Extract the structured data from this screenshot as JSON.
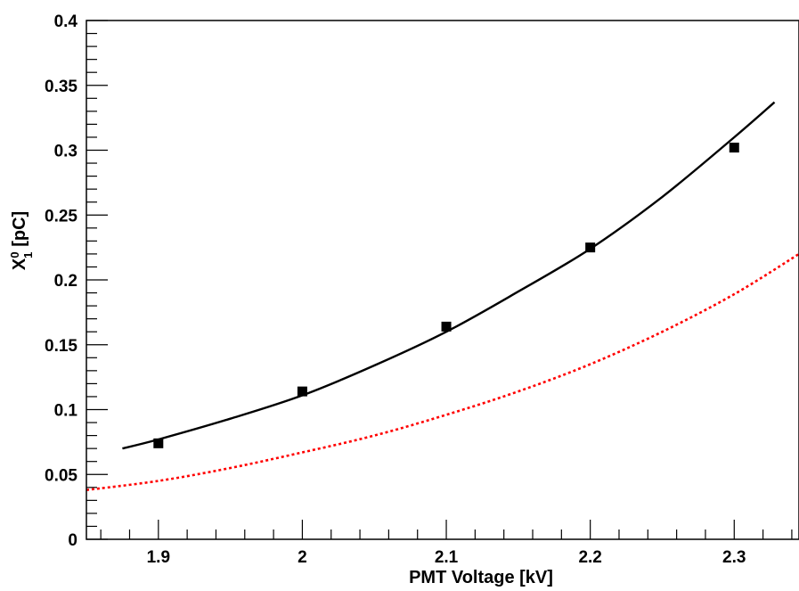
{
  "chart_data": {
    "type": "scatter",
    "title": "",
    "xlabel": "PMT Voltage [kV]",
    "ylabel": {
      "base": "X",
      "sub": "1",
      "sup": "0",
      "unit": " [pC]"
    },
    "xlim": [
      1.85,
      2.345
    ],
    "ylim": [
      0,
      0.4
    ],
    "x_ticks": [
      1.9,
      2.0,
      2.1,
      2.2,
      2.3
    ],
    "x_tick_labels": [
      "1.9",
      "2",
      "2.1",
      "2.2",
      "2.3"
    ],
    "y_ticks": [
      0,
      0.05,
      0.1,
      0.15,
      0.2,
      0.25,
      0.3,
      0.35,
      0.4
    ],
    "y_tick_labels": [
      "0",
      "0.05",
      "0.1",
      "0.15",
      "0.2",
      "0.25",
      "0.3",
      "0.35",
      "0.4"
    ],
    "grid": false,
    "legend": "none",
    "series": [
      {
        "kind": "points",
        "marker": "square",
        "color": "#000000",
        "x": [
          1.9,
          2.0,
          2.1,
          2.2,
          2.3
        ],
        "y": [
          0.074,
          0.114,
          0.164,
          0.225,
          0.302
        ]
      },
      {
        "kind": "line",
        "style": "solid",
        "color": "#000000",
        "x": [
          1.875,
          1.9,
          1.95,
          2.0,
          2.05,
          2.1,
          2.15,
          2.2,
          2.25,
          2.3,
          2.328
        ],
        "y": [
          0.07,
          0.077,
          0.093,
          0.111,
          0.134,
          0.16,
          0.191,
          0.224,
          0.264,
          0.31,
          0.337
        ]
      },
      {
        "kind": "line",
        "style": "dotted",
        "color": "#ff0000",
        "x": [
          1.85,
          1.9,
          1.95,
          2.0,
          2.05,
          2.1,
          2.15,
          2.2,
          2.25,
          2.3,
          2.345
        ],
        "y": [
          0.038,
          0.045,
          0.055,
          0.067,
          0.08,
          0.096,
          0.114,
          0.135,
          0.16,
          0.189,
          0.22
        ]
      }
    ]
  }
}
